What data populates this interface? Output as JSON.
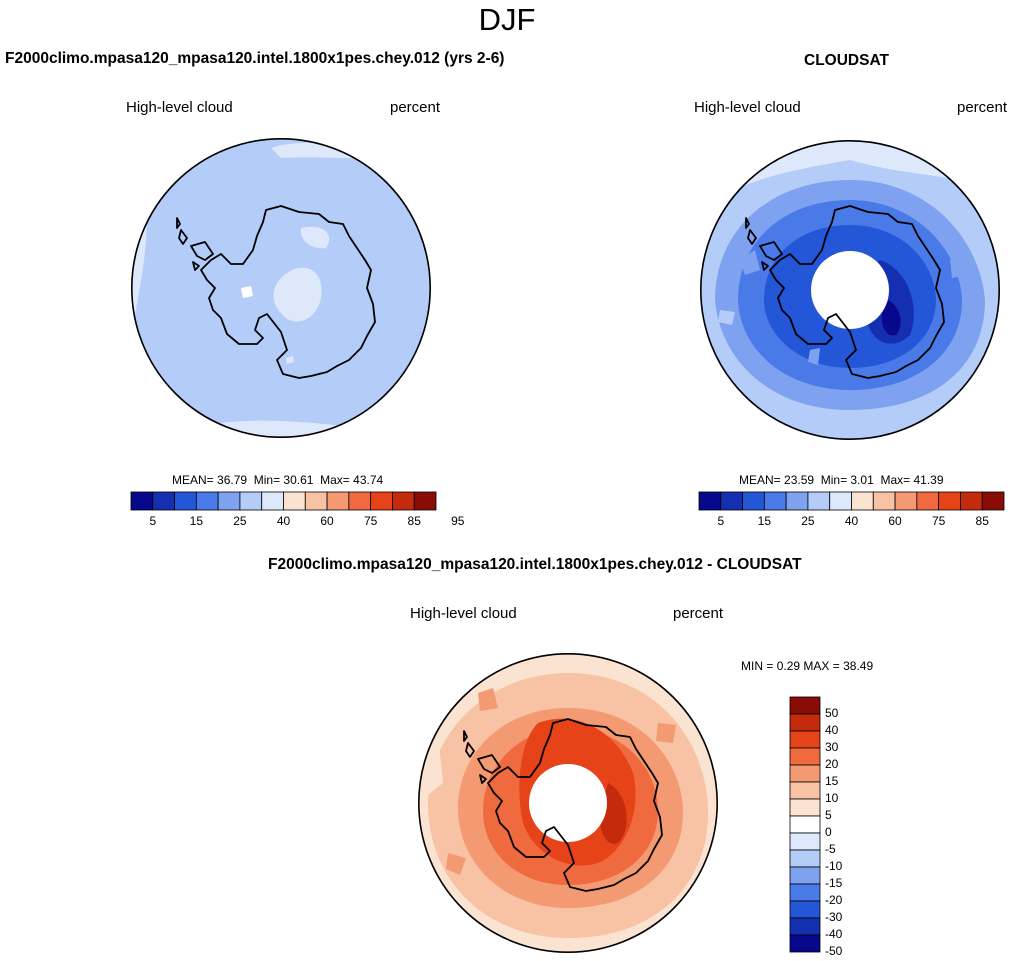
{
  "season": "DJF",
  "panels": {
    "model": {
      "title": "F2000climo.mpasa120_mpasa120.intel.1800x1pes.chey.012 (yrs 2-6)",
      "left_label": "High-level cloud",
      "right_label": "percent",
      "mean_label": "MEAN=",
      "mean": "36.79",
      "min_label": "Min=",
      "min": "30.61",
      "max_label": "Max=",
      "max": "43.74"
    },
    "obs": {
      "title": "CLOUDSAT",
      "left_label": "High-level cloud",
      "right_label": "percent",
      "mean_label": "MEAN=",
      "mean": "23.59",
      "min_label": "Min=",
      "min": "3.01",
      "max_label": "Max=",
      "max": "41.39"
    },
    "diff": {
      "title": "F2000climo.mpasa120_mpasa120.intel.1800x1pes.chey.012 - CLOUDSAT",
      "left_label": "High-level cloud",
      "right_label": "percent",
      "min_label": "MIN =",
      "min": "0.29",
      "max_label": "MAX =",
      "max": "38.49"
    }
  },
  "colorbar_abs": {
    "ticks": [
      "5",
      "15",
      "25",
      "40",
      "60",
      "75",
      "85",
      "95"
    ],
    "colors": [
      "#08088c",
      "#1430b0",
      "#2456d8",
      "#4a7ae8",
      "#7ea2f0",
      "#b4ccf8",
      "#dde9fb",
      "#fbe3d2",
      "#f8c2a4",
      "#f49a72",
      "#f06a40",
      "#e64418",
      "#c42a0c",
      "#8a0c06"
    ]
  },
  "colorbar_diff": {
    "ticks": [
      "50",
      "40",
      "30",
      "20",
      "15",
      "10",
      "5",
      "0",
      "-5",
      "-10",
      "-15",
      "-20",
      "-30",
      "-40",
      "-50"
    ],
    "colors": [
      "#8a0c06",
      "#c42a0c",
      "#e64418",
      "#f06a40",
      "#f49a72",
      "#f8c2a4",
      "#fbe3d2",
      "#ffffff",
      "#dde9fb",
      "#b4ccf8",
      "#7ea2f0",
      "#4a7ae8",
      "#2456d8",
      "#1430b0",
      "#08088c"
    ]
  }
}
